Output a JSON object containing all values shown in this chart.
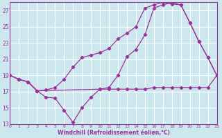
{
  "xlabel": "Windchill (Refroidissement éolien,°C)",
  "background_color": "#cce8ee",
  "grid_color": "#ffffff",
  "line_color": "#993399",
  "xlim": [
    0,
    23
  ],
  "ylim": [
    13,
    28
  ],
  "yticks": [
    13,
    15,
    17,
    19,
    21,
    23,
    25,
    27
  ],
  "xticks": [
    0,
    1,
    2,
    3,
    4,
    5,
    6,
    7,
    8,
    9,
    10,
    11,
    12,
    13,
    14,
    15,
    16,
    17,
    18,
    19,
    20,
    21,
    22,
    23
  ],
  "curve1_x": [
    0,
    1,
    2,
    3,
    4,
    5,
    6,
    7,
    8,
    9,
    10,
    11,
    12,
    13,
    14,
    15,
    16,
    17,
    18,
    19,
    20,
    21,
    22,
    23
  ],
  "curve1_y": [
    19.0,
    18.5,
    18.2,
    17.1,
    16.3,
    16.2,
    14.7,
    13.2,
    15.0,
    16.3,
    17.3,
    17.3,
    17.3,
    17.3,
    17.3,
    17.3,
    17.5,
    17.5,
    17.5,
    17.5,
    17.5,
    17.5,
    17.5,
    19.0
  ],
  "curve2_x": [
    0,
    1,
    2,
    3,
    4,
    5,
    6,
    7,
    8,
    9,
    10,
    11,
    12,
    13,
    14,
    15,
    16,
    17,
    18,
    19,
    20,
    21,
    22,
    23
  ],
  "curve2_y": [
    19.0,
    18.5,
    18.2,
    17.1,
    17.2,
    17.5,
    18.5,
    20.0,
    21.2,
    21.5,
    21.8,
    22.3,
    23.5,
    24.2,
    25.0,
    27.3,
    27.7,
    28.0,
    27.8,
    27.7,
    25.5,
    23.2,
    21.2,
    19.0
  ],
  "curve3_x": [
    0,
    1,
    2,
    3,
    10,
    11,
    12,
    13,
    14,
    15,
    16,
    17,
    18,
    19,
    20,
    21,
    22,
    23
  ],
  "curve3_y": [
    19.0,
    18.5,
    18.2,
    17.1,
    17.3,
    17.5,
    19.0,
    21.3,
    22.2,
    24.0,
    27.3,
    27.7,
    28.0,
    27.7,
    25.5,
    23.2,
    21.2,
    19.0
  ]
}
